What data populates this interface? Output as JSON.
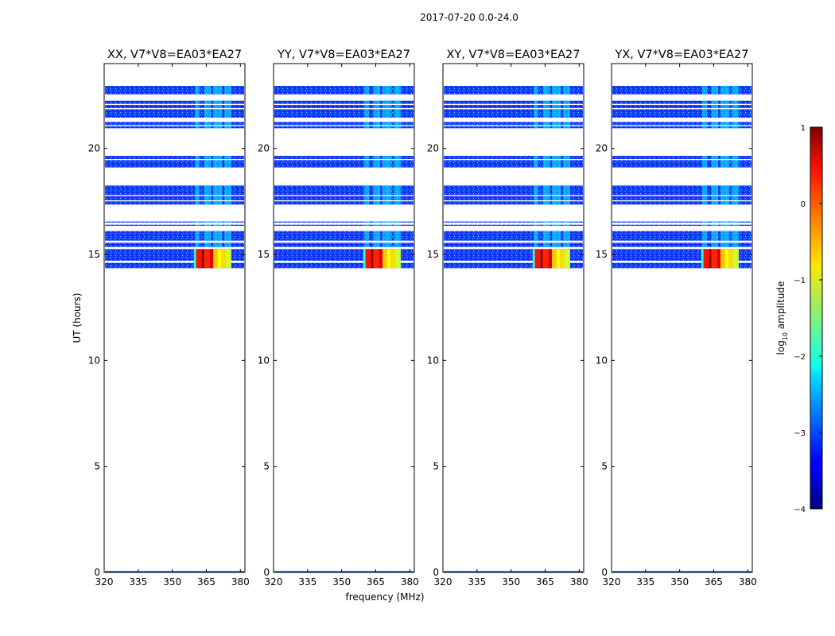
{
  "figure": {
    "suptitle": "2017-07-20 0.0-24.0",
    "xlabel": "frequency (MHz)",
    "ylabel": "UT (hours)"
  },
  "chart_data": {
    "type": "heatmap",
    "title": "2017-07-20 0.0-24.0",
    "xlabel": "frequency (MHz)",
    "ylabel": "UT (hours)",
    "xlim": [
      320,
      382
    ],
    "ylim": [
      0,
      24
    ],
    "xticks": [
      320,
      335,
      350,
      365,
      380
    ],
    "yticks": [
      0,
      5,
      10,
      15,
      20
    ],
    "panels": [
      {
        "title": "XX, V7*V8=EA03*EA27"
      },
      {
        "title": "YY, V7*V8=EA03*EA27"
      },
      {
        "title": "XY, V7*V8=EA03*EA27"
      },
      {
        "title": "YX, V7*V8=EA03*EA27"
      }
    ],
    "data_rows_ut_hours": [
      [
        14.35,
        14.6
      ],
      [
        14.7,
        15.25
      ],
      [
        15.35,
        15.55
      ],
      [
        15.65,
        16.1
      ],
      [
        16.35,
        16.4
      ],
      [
        16.5,
        16.55
      ],
      [
        17.35,
        17.5
      ],
      [
        17.55,
        17.75
      ],
      [
        17.8,
        18.25
      ],
      [
        19.1,
        19.45
      ],
      [
        19.5,
        19.65
      ],
      [
        20.95,
        21.05
      ],
      [
        21.1,
        21.25
      ],
      [
        21.45,
        21.85
      ],
      [
        21.9,
        22.05
      ],
      [
        22.1,
        22.25
      ],
      [
        22.55,
        22.95
      ]
    ],
    "rfi_bands_mhz": [
      [
        360,
        362
      ],
      [
        364,
        367
      ],
      [
        368,
        372
      ],
      [
        373,
        376
      ]
    ],
    "strong_signal": {
      "ut_range": [
        14.35,
        15.25
      ],
      "freq_range_mhz": [
        359.5,
        376
      ],
      "log10_amplitude": [
        -1,
        0.5
      ]
    },
    "background_log10_amplitude": [
      -3.5,
      -2.5
    ],
    "colorbar": {
      "label": "log10 amplitude",
      "label_main": "log",
      "label_sub": "10",
      "label_rest": " amplitude",
      "min": -4,
      "max": 1,
      "ticks": [
        -4,
        -3,
        -2,
        -1,
        0,
        1
      ],
      "colormap": "jet"
    }
  }
}
